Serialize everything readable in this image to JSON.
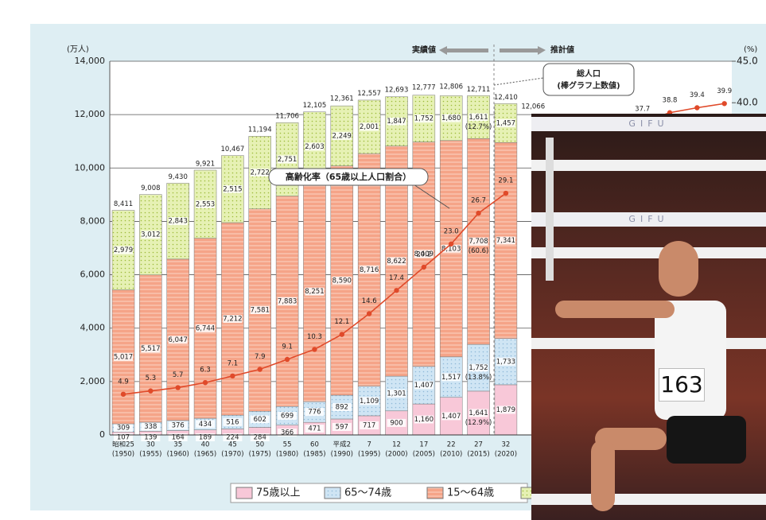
{
  "chart_data": {
    "type": "stacked-bar-line",
    "y_unit": "(万人)",
    "y2_unit": "(%)",
    "actual_label": "実績値",
    "forecast_label": "推計値",
    "total_callout": [
      "総人口",
      "(棒グラフ上数値)"
    ],
    "rate_callout": "高齢化率（65歳以上人口割合）",
    "categories": [
      "昭和25",
      "30",
      "35",
      "40",
      "45",
      "50",
      "55",
      "60",
      "平成2",
      "7",
      "12",
      "17",
      "22",
      "27",
      "32",
      null,
      null,
      null,
      null,
      null,
      null,
      null,
      null
    ],
    "category_years": [
      "(1950)",
      "(1955)",
      "(1960)",
      "(1965)",
      "(1970)",
      "(1975)",
      "(1980)",
      "(1985)",
      "(1990)",
      "(1995)",
      "(2000)",
      "(2005)",
      "(2010)",
      "(2015)",
      "(2020)",
      null,
      null,
      null,
      null,
      null,
      null,
      null,
      null
    ],
    "ylim": [
      0,
      14000
    ],
    "yticks": [
      {
        "value": 0,
        "label": "0"
      },
      {
        "value": 2000,
        "label": "2,000"
      },
      {
        "value": 4000,
        "label": "4,000"
      },
      {
        "value": 6000,
        "label": "6,000"
      },
      {
        "value": 8000,
        "label": "8,000"
      },
      {
        "value": 10000,
        "label": "10,000"
      },
      {
        "value": 12000,
        "label": "12,000"
      },
      {
        "value": 14000,
        "label": "14,000"
      }
    ],
    "y2lim": [
      0,
      45
    ],
    "y2ticks": [
      {
        "value": 40,
        "label": "40.0"
      },
      {
        "value": 45,
        "label": "45.0"
      }
    ],
    "series": [
      {
        "name": "75歳以上",
        "color": "#f8c8d8",
        "values": [
          107,
          139,
          164,
          189,
          224,
          284,
          366,
          471,
          597,
          717,
          900,
          1160,
          1407,
          1641,
          1879,
          null,
          null,
          null,
          null,
          null,
          null,
          null,
          null
        ],
        "value_labels": [
          "107",
          "139",
          "164",
          "189",
          "224",
          "284",
          "366",
          "471",
          "597",
          "717",
          "900",
          "1,160",
          "1,407",
          "1,641",
          "1,879",
          null,
          null,
          null,
          null,
          null,
          null,
          null,
          null
        ],
        "value_notes": [
          null,
          null,
          null,
          null,
          null,
          null,
          null,
          null,
          null,
          null,
          null,
          null,
          null,
          "(12.9%)",
          null,
          null,
          null,
          null,
          null,
          null,
          null,
          null,
          null
        ]
      },
      {
        "name": "65～74歳",
        "color": "#cfe5f4",
        "values": [
          309,
          338,
          376,
          434,
          516,
          602,
          699,
          776,
          892,
          1109,
          1301,
          1407,
          1517,
          1752,
          1733,
          null,
          null,
          null,
          null,
          null,
          null,
          null,
          null
        ],
        "value_labels": [
          "309",
          "338",
          "376",
          "434",
          "516",
          "602",
          "699",
          "776",
          "892",
          "1,109",
          "1,301",
          "1,407",
          "1,517",
          "1,752",
          "1,733",
          null,
          null,
          null,
          null,
          null,
          null,
          null,
          null
        ],
        "value_notes": [
          null,
          null,
          null,
          null,
          null,
          null,
          null,
          null,
          null,
          null,
          null,
          null,
          null,
          "(13.8%)",
          null,
          null,
          null,
          null,
          null,
          null,
          null,
          null,
          null
        ]
      },
      {
        "name": "15～64歳",
        "color": "#f5a488",
        "values": [
          5017,
          5517,
          6047,
          6744,
          7212,
          7581,
          7883,
          8251,
          8590,
          8716,
          8622,
          8409,
          8103,
          7708,
          7341,
          null,
          null,
          null,
          null,
          null,
          null,
          null,
          null
        ],
        "value_labels": [
          "5,017",
          "5,517",
          "6,047",
          "6,744",
          "7,212",
          "7,581",
          "7,883",
          "8,251",
          "8,590",
          "8,716",
          "8,622",
          "8,409",
          "8,103",
          "7,708",
          "7,341",
          null,
          null,
          null,
          null,
          null,
          null,
          null,
          null
        ],
        "value_notes": [
          null,
          null,
          null,
          null,
          null,
          null,
          null,
          null,
          null,
          null,
          null,
          null,
          null,
          "(60.6)",
          null,
          null,
          null,
          null,
          null,
          null,
          null,
          null,
          null
        ]
      },
      {
        "color": "#e6f1b4",
        "values": [
          2979,
          3012,
          2843,
          2553,
          2515,
          2722,
          2751,
          2603,
          2249,
          2001,
          1847,
          1752,
          1680,
          1611,
          1457,
          null,
          null,
          null,
          null,
          null,
          null,
          null,
          null
        ],
        "value_labels": [
          "2,979",
          "3,012",
          "2,843",
          "2,553",
          "2,515",
          "2,722",
          "2,751",
          "2,603",
          "2,249",
          "2,001",
          "1,847",
          "1,752",
          "1,680",
          "1,611",
          "1,457",
          null,
          null,
          null,
          null,
          null,
          null,
          null,
          null
        ],
        "value_notes": [
          null,
          null,
          null,
          null,
          null,
          null,
          null,
          null,
          null,
          null,
          null,
          null,
          null,
          "(12.7%)",
          null,
          null,
          null,
          null,
          null,
          null,
          null,
          null,
          null
        ]
      }
    ],
    "totals": {
      "values": [
        8411,
        9008,
        9430,
        9921,
        10467,
        11194,
        11706,
        12105,
        12361,
        12557,
        12693,
        12777,
        12806,
        12711,
        12410,
        12066,
        null,
        null,
        null,
        null,
        null,
        null,
        null
      ],
      "value_labels": [
        "8,411",
        "9,008",
        "9,430",
        "9,921",
        "10,467",
        "11,194",
        "11,706",
        "12,105",
        "12,361",
        "12,557",
        "12,693",
        "12,777",
        "12,806",
        "12,711",
        "12,410",
        "12,066",
        null,
        null,
        null,
        null,
        null,
        null,
        null
      ]
    },
    "rate": {
      "axis": "y2",
      "color": "#e04a2a",
      "values": [
        4.9,
        5.3,
        5.7,
        6.3,
        7.1,
        7.9,
        9.1,
        10.3,
        12.1,
        14.6,
        17.4,
        20.2,
        23.0,
        26.7,
        29.1,
        null,
        null,
        null,
        null,
        37.7,
        38.8,
        39.4,
        39.9
      ],
      "value_labels": [
        "4.9",
        "5.3",
        "5.7",
        "6.3",
        "7.1",
        "7.9",
        "9.1",
        "10.3",
        "12.1",
        "14.6",
        "17.4",
        "20.2",
        "23.0",
        "26.7",
        "29.1",
        null,
        null,
        null,
        null,
        "37.7",
        "38.8",
        "39.4",
        "39.9"
      ]
    }
  },
  "photo": {
    "bib": "163",
    "banners": [
      "GIFU",
      "GIFU"
    ]
  }
}
